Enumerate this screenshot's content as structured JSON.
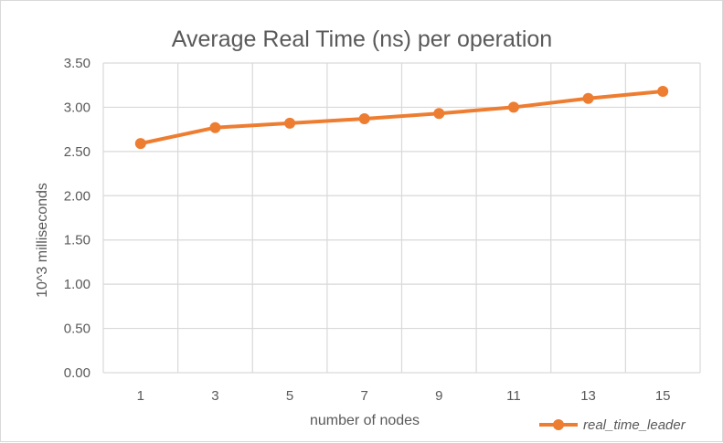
{
  "chart_data": {
    "type": "line",
    "title": "Average Real Time (ns) per operation",
    "xlabel": "number of nodes",
    "ylabel": "10^3 milliseconds",
    "x": [
      "1",
      "3",
      "5",
      "7",
      "9",
      "11",
      "13",
      "15"
    ],
    "series": [
      {
        "name": "real_time_leader",
        "values": [
          2.59,
          2.77,
          2.82,
          2.87,
          2.93,
          3.0,
          3.1,
          3.18
        ],
        "color": "#ED7D31"
      }
    ],
    "ylim": [
      0,
      3.5
    ],
    "yticks": [
      "0.00",
      "0.50",
      "1.00",
      "1.50",
      "2.00",
      "2.50",
      "3.00",
      "3.50"
    ],
    "grid": true,
    "legend": "bottom-right"
  }
}
